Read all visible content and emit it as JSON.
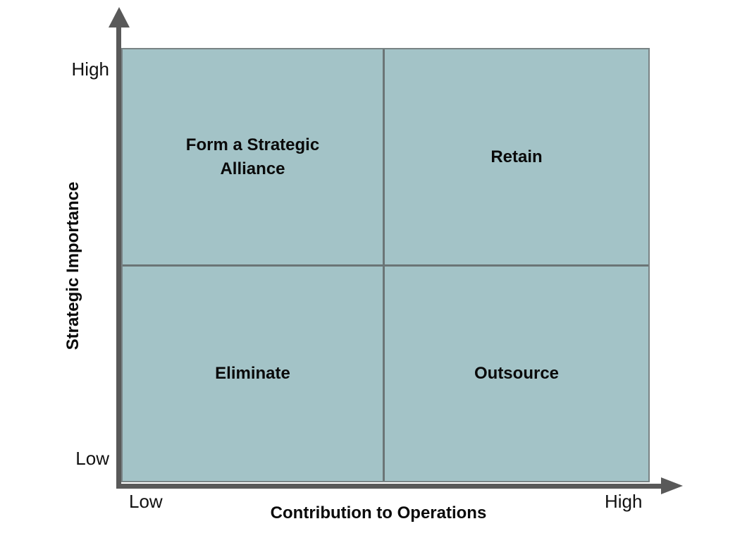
{
  "matrix": {
    "type": "quadrant-matrix",
    "x_axis": {
      "title": "Contribution to Operations",
      "min_label": "Low",
      "max_label": "High"
    },
    "y_axis": {
      "title": "Strategic Importance",
      "min_label": "Low",
      "max_label": "High"
    },
    "quadrants": [
      {
        "position": "top-left",
        "x": "low",
        "y": "high",
        "label": "Form a Strategic Alliance"
      },
      {
        "position": "top-right",
        "x": "high",
        "y": "high",
        "label": "Retain"
      },
      {
        "position": "bottom-left",
        "x": "low",
        "y": "low",
        "label": "Eliminate"
      },
      {
        "position": "bottom-right",
        "x": "high",
        "y": "low",
        "label": "Outsource"
      }
    ],
    "colors": {
      "quadrant_fill": "#a3c3c7",
      "axis": "#595959",
      "divider": "#6b7576",
      "box_border": "#798385",
      "label_text": "#0a0a0a"
    }
  }
}
